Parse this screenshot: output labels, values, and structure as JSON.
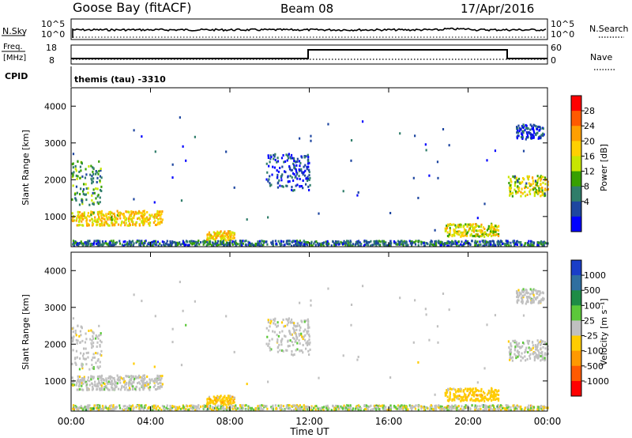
{
  "header": {
    "station": "Goose Bay (fitACF)",
    "beam": "Beam 08",
    "date": "17/Apr/2016"
  },
  "strips": {
    "nsky_label": "N.Sky",
    "nsearch_label": "N.Search",
    "left_ticks_top": [
      "10^5",
      "10^0"
    ],
    "right_ticks_top": [
      "10^5",
      "10^0"
    ],
    "freq_label_1": "Freq.",
    "freq_label_2": "[MHz]",
    "freq_ticks": [
      "18",
      "8"
    ],
    "nave_label": "Nave",
    "nave_ticks": [
      "60",
      "0"
    ],
    "cpid_label": "CPID",
    "cpid_text": "themis (tau) -3310"
  },
  "panels": {
    "ylabel": "Slant Range [km]",
    "yticks": [
      "4000",
      "3000",
      "2000",
      "1000"
    ],
    "xticks": [
      "00:00",
      "04:00",
      "08:00",
      "12:00",
      "16:00",
      "20:00",
      "00:00"
    ],
    "xlabel": "Time UT"
  },
  "power_scale": {
    "label": "Power [dB]",
    "ticks": [
      "28",
      "24",
      "20",
      "16",
      "12",
      "8",
      "4"
    ],
    "colors": [
      "#ff0000",
      "#ff5a00",
      "#ff9f00",
      "#ffd000",
      "#c8e600",
      "#37a000",
      "#2f7d6a",
      "#1e46a0",
      "#0000ff"
    ]
  },
  "velocity_scale": {
    "label": "Velocity [m s⁻¹]",
    "ticks": [
      "1000",
      "500",
      "100",
      "25",
      "-25",
      "-100",
      "-500",
      "-1000"
    ],
    "colors": [
      "#1a3ec8",
      "#2f6fa0",
      "#1e8c46",
      "#5cc83a",
      "#c0c0c0",
      "#ffcc00",
      "#ff9900",
      "#ff5a00",
      "#ff0000"
    ]
  },
  "chart_data": {
    "type": "heatmap",
    "x_range_hours": [
      0,
      24
    ],
    "y_range_km": [
      180,
      4500
    ],
    "frequency_MHz_approx": 10,
    "nave_steps": [
      {
        "from": "00:00",
        "to": "12:00",
        "value": 20
      },
      {
        "from": "12:00",
        "to": "22:00",
        "value": 50
      },
      {
        "from": "22:00",
        "to": "00:00",
        "value": 20
      }
    ],
    "echo_regions": [
      {
        "t_start": 0.0,
        "t_end": 4.6,
        "range_km": [
          750,
          1150
        ],
        "power_dB": 20,
        "velocity": "gray"
      },
      {
        "t_start": 0.0,
        "t_end": 1.5,
        "range_km": [
          1300,
          2500
        ],
        "power_dB": 12,
        "velocity": "gray"
      },
      {
        "t_start": 6.8,
        "t_end": 8.2,
        "range_km": [
          350,
          600
        ],
        "power_dB": 20,
        "velocity": "-100"
      },
      {
        "t_start": 9.8,
        "t_end": 12.0,
        "range_km": [
          1700,
          2700
        ],
        "power_dB": 6,
        "velocity": "gray"
      },
      {
        "t_start": 18.8,
        "t_end": 21.5,
        "range_km": [
          450,
          800
        ],
        "power_dB": 18,
        "velocity": "-100"
      },
      {
        "t_start": 22.0,
        "t_end": 24.0,
        "range_km": [
          1550,
          2100
        ],
        "power_dB": 18,
        "velocity": "gray"
      },
      {
        "t_start": 22.4,
        "t_end": 23.8,
        "range_km": [
          3100,
          3500
        ],
        "power_dB": 6,
        "velocity": "gray"
      }
    ]
  }
}
